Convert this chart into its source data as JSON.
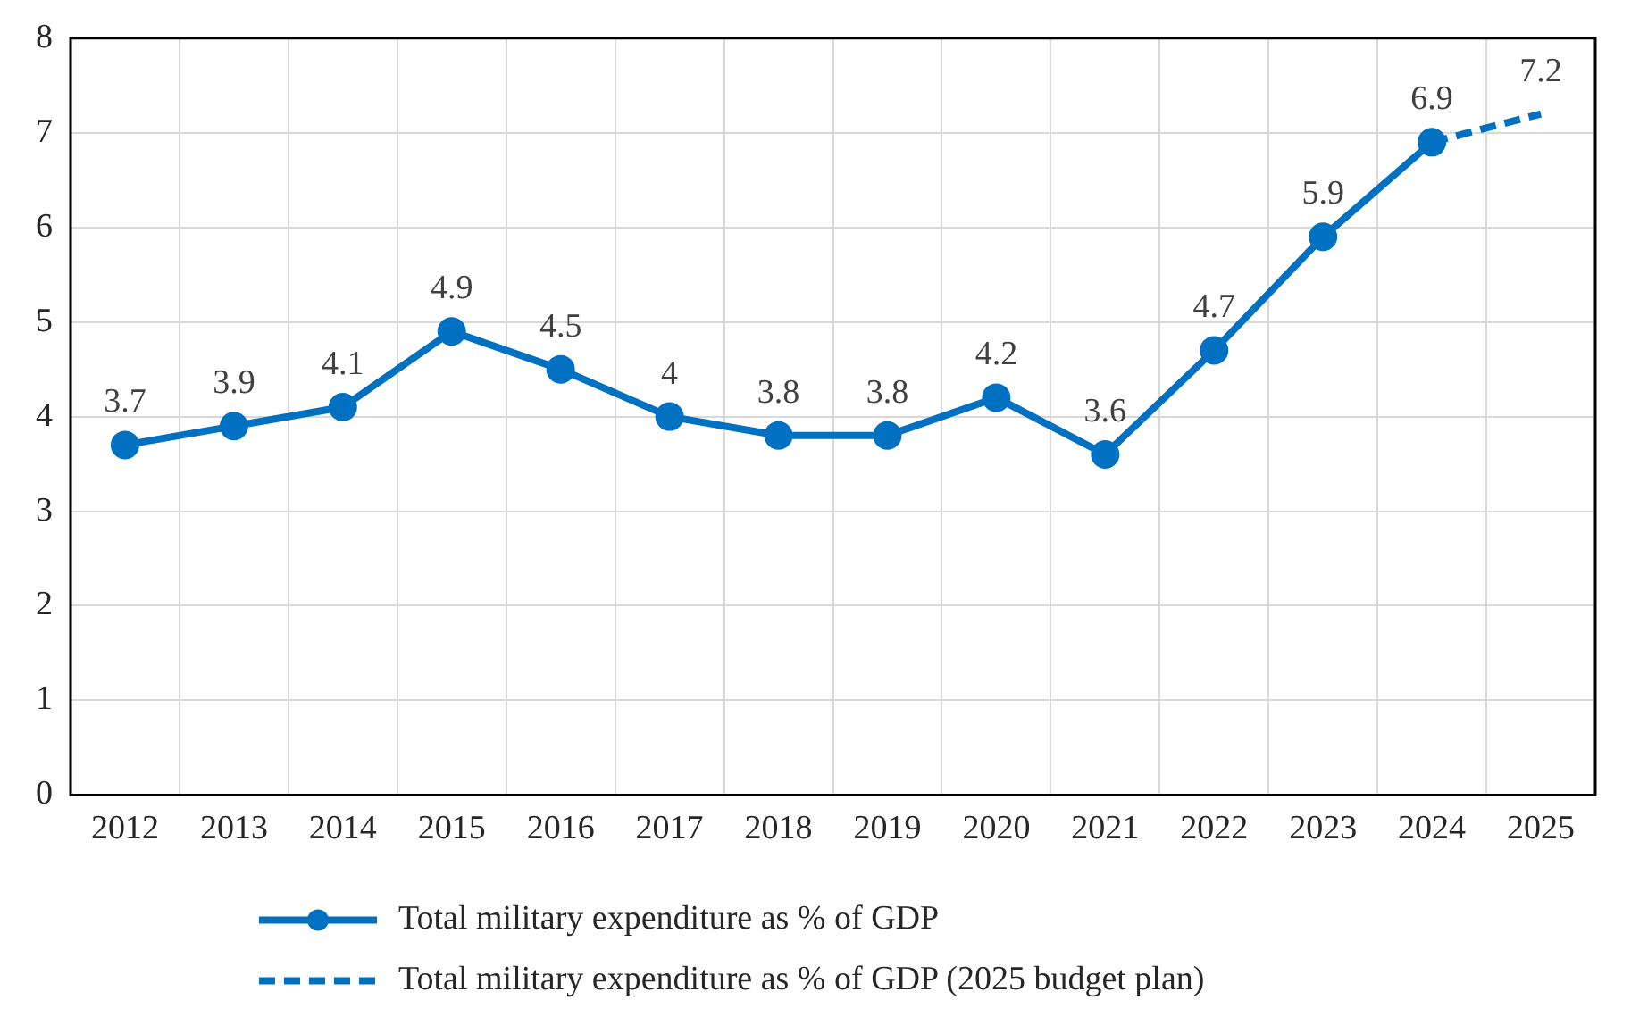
{
  "chart_data": {
    "type": "line",
    "categories": [
      "2012",
      "2013",
      "2014",
      "2015",
      "2016",
      "2017",
      "2018",
      "2019",
      "2020",
      "2021",
      "2022",
      "2023",
      "2024",
      "2025"
    ],
    "ylim": [
      0,
      8
    ],
    "yticks": [
      0,
      1,
      2,
      3,
      4,
      5,
      6,
      7,
      8
    ],
    "grid": true,
    "legend": "bottom",
    "series": [
      {
        "name": "Total military expenditure as % of GDP",
        "color": "#0070c0",
        "marker": "circle",
        "line_style": "solid",
        "values": [
          3.7,
          3.9,
          4.1,
          4.9,
          4.5,
          4,
          3.8,
          3.8,
          4.2,
          3.6,
          4.7,
          5.9,
          6.9,
          null
        ],
        "value_labels": [
          "3.7",
          "3.9",
          "4.1",
          "4.9",
          "4.5",
          "4",
          "3.8",
          "3.8",
          "4.2",
          "3.6",
          "4.7",
          "5.9",
          "6.9",
          null
        ]
      },
      {
        "name": "Total military expenditure as % of GDP (2025 budget plan)",
        "color": "#0070c0",
        "line_style": "dashed",
        "values": [
          null,
          null,
          null,
          null,
          null,
          null,
          null,
          null,
          null,
          null,
          null,
          null,
          6.9,
          7.2
        ],
        "value_labels": [
          null,
          null,
          null,
          null,
          null,
          null,
          null,
          null,
          null,
          null,
          null,
          null,
          null,
          "7.2"
        ]
      }
    ]
  }
}
